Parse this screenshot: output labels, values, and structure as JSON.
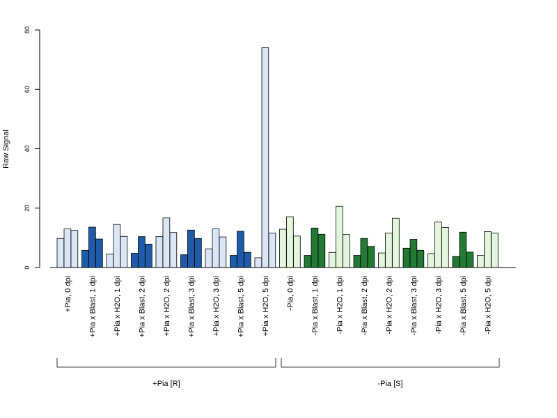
{
  "chart_data": {
    "type": "bar",
    "ylabel": "Raw Signal",
    "ylim": [
      0,
      80
    ],
    "yticks": [
      "0",
      "20",
      "40",
      "60",
      "80"
    ],
    "colors": {
      "light_blue": "#dae6f5",
      "dark_blue": "#1f5ba8",
      "light_green": "#e3f5dc",
      "dark_green": "#227a35"
    },
    "categories": [
      {
        "label": "+Pia, 0 dpi",
        "color": "light_blue",
        "values": [
          9.8,
          13.0,
          12.5
        ]
      },
      {
        "label": "+Pia x Blast, 1 dpi",
        "color": "dark_blue",
        "values": [
          5.8,
          13.6,
          9.6
        ]
      },
      {
        "label": "+Pia x H2O, 1 dpi",
        "color": "light_blue",
        "values": [
          4.5,
          14.5,
          10.5
        ]
      },
      {
        "label": "+Pia x Blast, 2 dpi",
        "color": "dark_blue",
        "values": [
          4.8,
          10.4,
          7.9
        ]
      },
      {
        "label": "+Pia x H2O, 2 dpi",
        "color": "light_blue",
        "values": [
          10.4,
          16.7,
          11.8
        ]
      },
      {
        "label": "+Pia x Blast, 3 dpi",
        "color": "dark_blue",
        "values": [
          4.3,
          12.6,
          9.8
        ]
      },
      {
        "label": "+Pia x H2O, 3 dpi",
        "color": "light_blue",
        "values": [
          6.3,
          13.0,
          10.3
        ]
      },
      {
        "label": "+Pia x Blast, 5 dpi",
        "color": "dark_blue",
        "values": [
          4.1,
          12.2,
          5.1
        ]
      },
      {
        "label": "+Pia x H2O, 5 dpi",
        "color": "light_blue",
        "values": [
          3.3,
          74.0,
          11.6
        ]
      },
      {
        "label": "-Pia, 0 dpi",
        "color": "light_green",
        "values": [
          12.9,
          17.1,
          10.6
        ]
      },
      {
        "label": "-Pia x Blast, 1 dpi",
        "color": "dark_green",
        "values": [
          4.1,
          13.3,
          11.2
        ]
      },
      {
        "label": "-Pia x H2O, 1 dpi",
        "color": "light_green",
        "values": [
          5.1,
          20.6,
          11.1
        ]
      },
      {
        "label": "-Pia x Blast, 2 dpi",
        "color": "dark_green",
        "values": [
          4.1,
          9.8,
          7.1
        ]
      },
      {
        "label": "-Pia x H2O, 2 dpi",
        "color": "light_green",
        "values": [
          4.9,
          11.6,
          16.6
        ]
      },
      {
        "label": "-Pia x Blast, 3 dpi",
        "color": "dark_green",
        "values": [
          6.5,
          9.5,
          5.8
        ]
      },
      {
        "label": "-Pia x H2O, 3 dpi",
        "color": "light_green",
        "values": [
          4.7,
          15.3,
          13.5
        ]
      },
      {
        "label": "-Pia x Blast, 5 dpi",
        "color": "dark_green",
        "values": [
          3.7,
          11.9,
          5.2
        ]
      },
      {
        "label": "-Pia x H2O, 5 dpi",
        "color": "light_green",
        "values": [
          4.1,
          12.1,
          11.6
        ]
      }
    ],
    "groups": [
      {
        "label": "+Pia [R]",
        "from": 0,
        "to": 8
      },
      {
        "label": "-Pia [S]",
        "from": 9,
        "to": 17
      }
    ]
  }
}
